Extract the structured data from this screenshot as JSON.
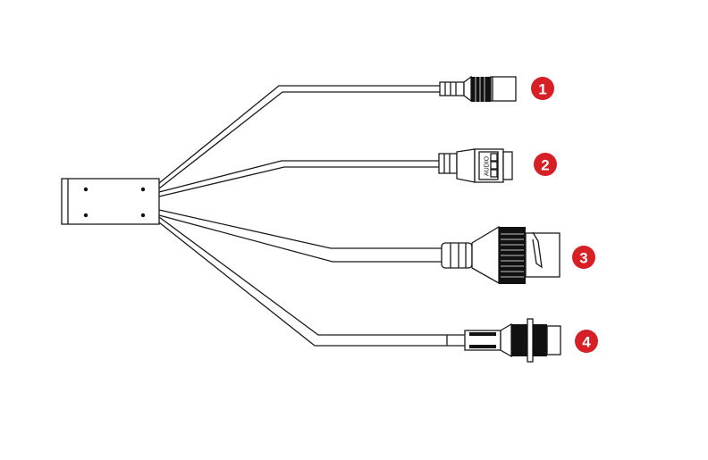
{
  "diagram": {
    "badge_color": "#d71f26",
    "connectors": [
      {
        "number": "1",
        "icon": "dc-power-jack"
      },
      {
        "number": "2",
        "icon": "audio-connector",
        "label": "AUDIO"
      },
      {
        "number": "3",
        "icon": "rj45-network-connector"
      },
      {
        "number": "4",
        "icon": "threaded-aviation-connector"
      }
    ]
  }
}
